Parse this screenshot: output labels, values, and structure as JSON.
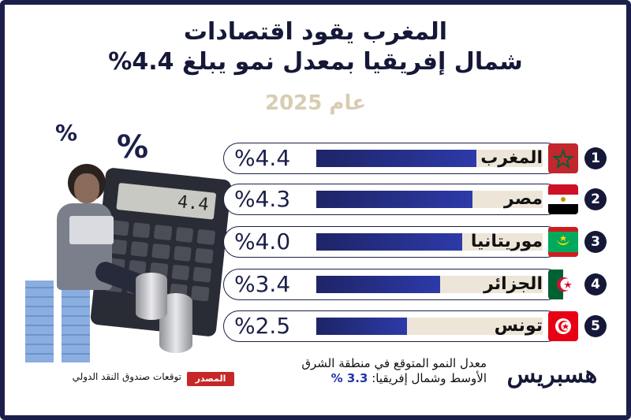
{
  "title": {
    "line1": "المغرب يقود اقتصادات",
    "line2": "شمال إفريقيا بمعدل نمو يبلغ 4.4%",
    "year": "عام 2025"
  },
  "illustration": {
    "pct_small": "%",
    "pct_big": "%",
    "calc_display": "4.4"
  },
  "chart_data": {
    "type": "bar",
    "categories": [
      "المغرب",
      "مصر",
      "موريتانيا",
      "الجزائر",
      "تونس"
    ],
    "values": [
      4.4,
      4.3,
      4.0,
      3.4,
      2.5
    ],
    "value_labels": [
      "%4.4",
      "%4.3",
      "%4.0",
      "%3.4",
      "%2.5"
    ],
    "ranks": [
      "1",
      "2",
      "3",
      "4",
      "5"
    ],
    "unit": "%",
    "xlim": [
      0,
      5.2
    ]
  },
  "flags": [
    "morocco",
    "egypt",
    "mauritania",
    "algeria",
    "tunisia"
  ],
  "colors": {
    "navy": "#1b1f4a",
    "bar": "#2d3aa8",
    "track": "#ede6d8",
    "source": "#c62828"
  },
  "note": {
    "line1": "معدل النمو المتوقع في منطقة الشرق",
    "line2_prefix": "الأوسط وشمال إفريقيا: ",
    "line2_value": "3.3 %"
  },
  "source": {
    "badge": "المصدر",
    "text": "توقعات صندوق النقد الدولي"
  },
  "logo": "هسبريس"
}
